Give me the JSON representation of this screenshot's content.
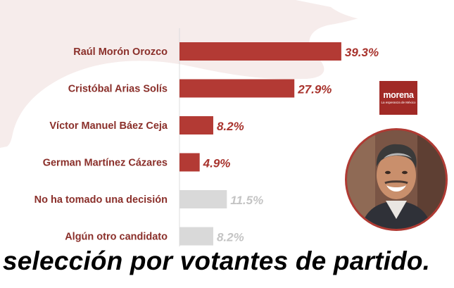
{
  "chart_data": {
    "type": "bar",
    "orientation": "horizontal",
    "categories": [
      "Raúl Morón Orozco",
      "Cristóbal Arias Solís",
      "Víctor Manuel Báez Ceja",
      "German Martínez Cázares",
      "No ha tomado una decisión",
      "Algún otro candidato"
    ],
    "values": [
      39.3,
      27.9,
      8.2,
      4.9,
      11.5,
      8.2
    ],
    "value_labels": [
      "39.3%",
      "27.9%",
      "8.2%",
      "4.9%",
      "11.5%",
      "8.2%"
    ],
    "bar_colors": [
      "#b33a34",
      "#b33a34",
      "#b33a34",
      "#b33a34",
      "#d9d9d9",
      "#d9d9d9"
    ],
    "value_label_colors": [
      "#a8332d",
      "#a8332d",
      "#a8332d",
      "#a8332d",
      "#c4c4c4",
      "#c4c4c4"
    ],
    "xlim": [
      0,
      40
    ],
    "grid": false
  },
  "logo": {
    "text": "morena",
    "tagline": "La esperanza de México"
  },
  "caption": "selección por votantes de partido."
}
